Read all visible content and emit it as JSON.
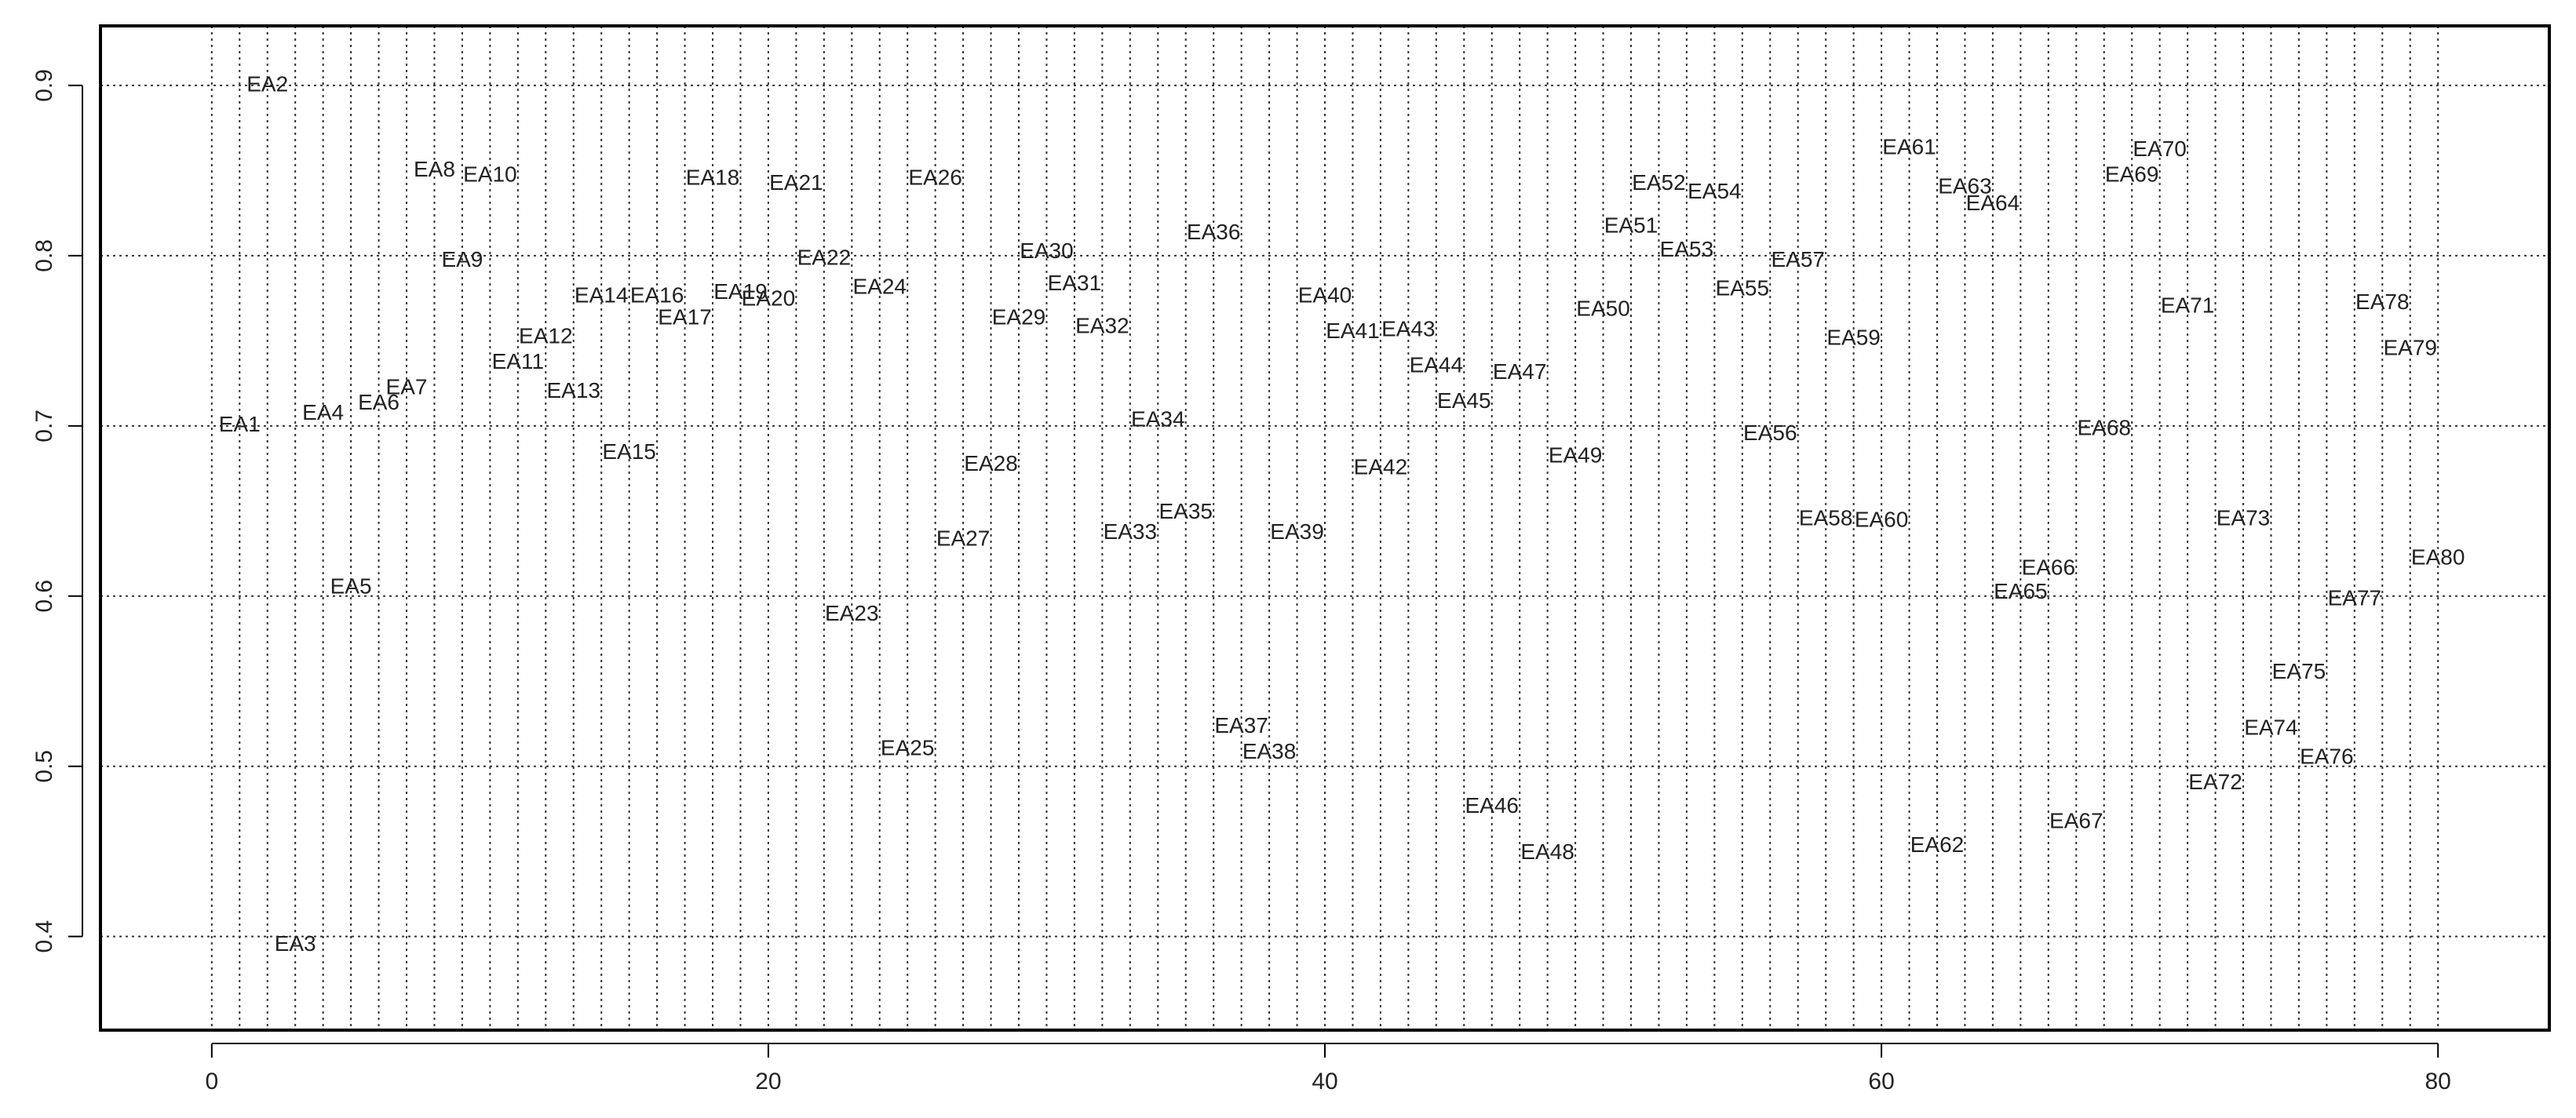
{
  "chart_data": {
    "type": "scatter",
    "title": "",
    "xlabel": "",
    "ylabel": "",
    "xlim": [
      -4,
      84
    ],
    "ylim": [
      0.345,
      0.935
    ],
    "x_ticks": [
      0,
      20,
      40,
      60,
      80
    ],
    "y_ticks": [
      0.4,
      0.5,
      0.6,
      0.7,
      0.8,
      0.9
    ],
    "x_tick_labels": [
      "0",
      "20",
      "40",
      "60",
      "80"
    ],
    "y_tick_labels": [
      "0.4",
      "0.5",
      "0.6",
      "0.7",
      "0.8",
      "0.9"
    ],
    "grid": {
      "vertical": "every 1 unit, dotted",
      "horizontal": "at y ticks, dotted"
    },
    "point_labels_only": true,
    "points": [
      {
        "label": "EA1",
        "x": 1,
        "y": 0.7
      },
      {
        "label": "EA2",
        "x": 2,
        "y": 0.9
      },
      {
        "label": "EA3",
        "x": 3,
        "y": 0.395
      },
      {
        "label": "EA4",
        "x": 4,
        "y": 0.707
      },
      {
        "label": "EA5",
        "x": 5,
        "y": 0.605
      },
      {
        "label": "EA6",
        "x": 6,
        "y": 0.713
      },
      {
        "label": "EA7",
        "x": 7,
        "y": 0.722
      },
      {
        "label": "EA8",
        "x": 8,
        "y": 0.85
      },
      {
        "label": "EA9",
        "x": 9,
        "y": 0.797
      },
      {
        "label": "EA10",
        "x": 10,
        "y": 0.847
      },
      {
        "label": "EA11",
        "x": 11,
        "y": 0.737
      },
      {
        "label": "EA12",
        "x": 12,
        "y": 0.752
      },
      {
        "label": "EA13",
        "x": 13,
        "y": 0.72
      },
      {
        "label": "EA14",
        "x": 14,
        "y": 0.776
      },
      {
        "label": "EA15",
        "x": 15,
        "y": 0.684
      },
      {
        "label": "EA16",
        "x": 16,
        "y": 0.776
      },
      {
        "label": "EA17",
        "x": 17,
        "y": 0.763
      },
      {
        "label": "EA18",
        "x": 18,
        "y": 0.845
      },
      {
        "label": "EA19",
        "x": 19,
        "y": 0.778
      },
      {
        "label": "EA20",
        "x": 20,
        "y": 0.774
      },
      {
        "label": "EA21",
        "x": 21,
        "y": 0.842
      },
      {
        "label": "EA22",
        "x": 22,
        "y": 0.798
      },
      {
        "label": "EA23",
        "x": 23,
        "y": 0.589
      },
      {
        "label": "EA24",
        "x": 24,
        "y": 0.781
      },
      {
        "label": "EA25",
        "x": 25,
        "y": 0.51
      },
      {
        "label": "EA26",
        "x": 26,
        "y": 0.845
      },
      {
        "label": "EA27",
        "x": 27,
        "y": 0.633
      },
      {
        "label": "EA28",
        "x": 28,
        "y": 0.677
      },
      {
        "label": "EA29",
        "x": 29,
        "y": 0.763
      },
      {
        "label": "EA30",
        "x": 30,
        "y": 0.802
      },
      {
        "label": "EA31",
        "x": 31,
        "y": 0.783
      },
      {
        "label": "EA32",
        "x": 32,
        "y": 0.758
      },
      {
        "label": "EA33",
        "x": 33,
        "y": 0.637
      },
      {
        "label": "EA34",
        "x": 34,
        "y": 0.703
      },
      {
        "label": "EA35",
        "x": 35,
        "y": 0.649
      },
      {
        "label": "EA36",
        "x": 36,
        "y": 0.813
      },
      {
        "label": "EA37",
        "x": 37,
        "y": 0.523
      },
      {
        "label": "EA38",
        "x": 38,
        "y": 0.508
      },
      {
        "label": "EA39",
        "x": 39,
        "y": 0.637
      },
      {
        "label": "EA40",
        "x": 40,
        "y": 0.776
      },
      {
        "label": "EA41",
        "x": 41,
        "y": 0.755
      },
      {
        "label": "EA42",
        "x": 42,
        "y": 0.675
      },
      {
        "label": "EA43",
        "x": 43,
        "y": 0.756
      },
      {
        "label": "EA44",
        "x": 44,
        "y": 0.735
      },
      {
        "label": "EA45",
        "x": 45,
        "y": 0.714
      },
      {
        "label": "EA46",
        "x": 46,
        "y": 0.476
      },
      {
        "label": "EA47",
        "x": 47,
        "y": 0.731
      },
      {
        "label": "EA48",
        "x": 48,
        "y": 0.449
      },
      {
        "label": "EA49",
        "x": 49,
        "y": 0.682
      },
      {
        "label": "EA50",
        "x": 50,
        "y": 0.768
      },
      {
        "label": "EA51",
        "x": 51,
        "y": 0.817
      },
      {
        "label": "EA52",
        "x": 52,
        "y": 0.842
      },
      {
        "label": "EA53",
        "x": 53,
        "y": 0.803
      },
      {
        "label": "EA54",
        "x": 54,
        "y": 0.837
      },
      {
        "label": "EA55",
        "x": 55,
        "y": 0.78
      },
      {
        "label": "EA56",
        "x": 56,
        "y": 0.695
      },
      {
        "label": "EA57",
        "x": 57,
        "y": 0.797
      },
      {
        "label": "EA58",
        "x": 58,
        "y": 0.645
      },
      {
        "label": "EA59",
        "x": 59,
        "y": 0.751
      },
      {
        "label": "EA60",
        "x": 60,
        "y": 0.644
      },
      {
        "label": "EA61",
        "x": 61,
        "y": 0.863
      },
      {
        "label": "EA62",
        "x": 62,
        "y": 0.453
      },
      {
        "label": "EA63",
        "x": 63,
        "y": 0.84
      },
      {
        "label": "EA64",
        "x": 64,
        "y": 0.83
      },
      {
        "label": "EA65",
        "x": 65,
        "y": 0.602
      },
      {
        "label": "EA66",
        "x": 66,
        "y": 0.616
      },
      {
        "label": "EA67",
        "x": 67,
        "y": 0.467
      },
      {
        "label": "EA68",
        "x": 68,
        "y": 0.698
      },
      {
        "label": "EA69",
        "x": 69,
        "y": 0.847
      },
      {
        "label": "EA70",
        "x": 70,
        "y": 0.862
      },
      {
        "label": "EA71",
        "x": 71,
        "y": 0.77
      },
      {
        "label": "EA72",
        "x": 72,
        "y": 0.49
      },
      {
        "label": "EA73",
        "x": 73,
        "y": 0.645
      },
      {
        "label": "EA74",
        "x": 74,
        "y": 0.522
      },
      {
        "label": "EA75",
        "x": 75,
        "y": 0.555
      },
      {
        "label": "EA76",
        "x": 76,
        "y": 0.505
      },
      {
        "label": "EA77",
        "x": 77,
        "y": 0.598
      },
      {
        "label": "EA78",
        "x": 78,
        "y": 0.772
      },
      {
        "label": "EA79",
        "x": 79,
        "y": 0.745
      },
      {
        "label": "EA80",
        "x": 80,
        "y": 0.622
      }
    ]
  }
}
